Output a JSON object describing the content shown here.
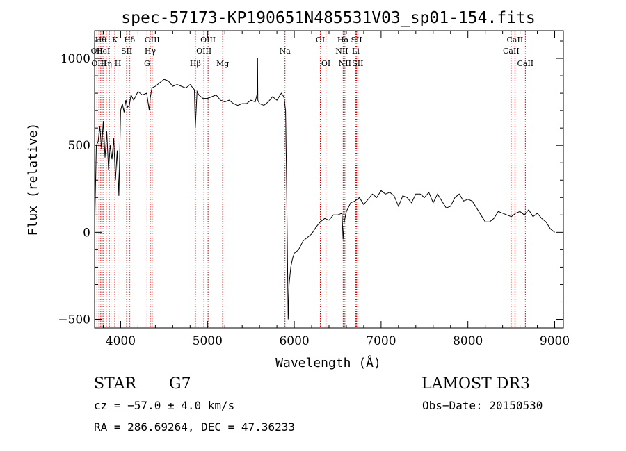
{
  "chart_data": {
    "type": "line",
    "title": "spec-57173-KP190651N485531V03_sp01-154.fits",
    "xlabel": "Wavelength (Å)",
    "ylabel": "Flux (relative)",
    "xlim": [
      3700,
      9100
    ],
    "ylim": [
      -550,
      1160
    ],
    "x_ticks": [
      4000,
      5000,
      6000,
      7000,
      8000,
      9000
    ],
    "y_ticks": [
      -500,
      0,
      500,
      1000
    ],
    "x_tick_labels": [
      "4000",
      "5000",
      "6000",
      "7000",
      "8000",
      "9000"
    ],
    "y_tick_labels": [
      "−500",
      "0",
      "500",
      "1000"
    ],
    "series": [
      {
        "x": [
          3700,
          3720,
          3740,
          3760,
          3780,
          3800,
          3820,
          3840,
          3860,
          3880,
          3900,
          3920,
          3940,
          3960,
          3980,
          4000,
          4020,
          4040,
          4060,
          4080,
          4100,
          4120,
          4150,
          4200,
          4250,
          4300,
          4330,
          4340,
          4360,
          4400,
          4450,
          4500,
          4550,
          4600,
          4650,
          4700,
          4750,
          4800,
          4850,
          4860,
          4880,
          4900,
          4950,
          5000,
          5050,
          5100,
          5150,
          5200,
          5250,
          5300,
          5350,
          5400,
          5450,
          5500,
          5550,
          5575,
          5577,
          5580,
          5600,
          5650,
          5700,
          5750,
          5800,
          5850,
          5880,
          5900,
          5910,
          5920,
          5930,
          5940,
          5960,
          5980,
          6000,
          6050,
          6100,
          6150,
          6200,
          6250,
          6300,
          6350,
          6400,
          6450,
          6500,
          6550,
          6562,
          6575,
          6600,
          6650,
          6700,
          6750,
          6800,
          6850,
          6900,
          6950,
          7000,
          7050,
          7100,
          7150,
          7200,
          7250,
          7300,
          7350,
          7400,
          7450,
          7500,
          7550,
          7600,
          7650,
          7700,
          7750,
          7800,
          7850,
          7900,
          7950,
          8000,
          8050,
          8100,
          8150,
          8200,
          8250,
          8300,
          8350,
          8400,
          8450,
          8500,
          8550,
          8600,
          8650,
          8700,
          8750,
          8800,
          8850,
          8900,
          8950,
          9000
        ],
        "y": [
          0,
          500,
          520,
          610,
          480,
          640,
          430,
          580,
          360,
          500,
          420,
          540,
          300,
          470,
          210,
          700,
          740,
          690,
          760,
          720,
          730,
          790,
          760,
          810,
          790,
          800,
          700,
          770,
          830,
          840,
          860,
          880,
          870,
          840,
          850,
          840,
          830,
          850,
          820,
          600,
          810,
          790,
          770,
          770,
          780,
          790,
          760,
          750,
          760,
          740,
          730,
          740,
          740,
          760,
          750,
          800,
          1000,
          760,
          740,
          730,
          750,
          780,
          760,
          800,
          780,
          700,
          350,
          -80,
          -500,
          -300,
          -200,
          -150,
          -120,
          -100,
          -50,
          -30,
          -10,
          30,
          60,
          80,
          70,
          100,
          100,
          110,
          -40,
          60,
          120,
          170,
          180,
          200,
          160,
          190,
          220,
          200,
          240,
          220,
          230,
          210,
          150,
          210,
          200,
          170,
          220,
          220,
          200,
          230,
          170,
          220,
          180,
          140,
          150,
          200,
          220,
          180,
          190,
          180,
          140,
          100,
          60,
          60,
          80,
          120,
          110,
          100,
          90,
          110,
          120,
          100,
          130,
          90,
          110,
          80,
          60,
          20,
          0
        ]
      }
    ],
    "line_markers": [
      {
        "x": 3727,
        "label": "OII",
        "row": 1
      },
      {
        "x": 3750,
        "label": "OIII",
        "row": 2
      },
      {
        "x": 3771,
        "label": "Hθ",
        "row": 0
      },
      {
        "x": 3797,
        "label": "HeI",
        "row": 1
      },
      {
        "x": 3835,
        "label": "Hη",
        "row": 2
      },
      {
        "x": 3869,
        "label": "",
        "row": -1
      },
      {
        "x": 3889,
        "label": "",
        "row": -1
      },
      {
        "x": 3933,
        "label": "K",
        "row": 0
      },
      {
        "x": 3969,
        "label": "H",
        "row": 2
      },
      {
        "x": 4069,
        "label": "SII",
        "row": 1
      },
      {
        "x": 4102,
        "label": "Hδ",
        "row": 0
      },
      {
        "x": 4304,
        "label": "G",
        "row": 2
      },
      {
        "x": 4341,
        "label": "Hγ",
        "row": 1
      },
      {
        "x": 4363,
        "label": "OIII",
        "row": 0
      },
      {
        "x": 4861,
        "label": "Hβ",
        "row": 2
      },
      {
        "x": 4959,
        "label": "OIII",
        "row": 1
      },
      {
        "x": 5007,
        "label": "OIII",
        "row": 0
      },
      {
        "x": 5175,
        "label": "Mg",
        "row": 2
      },
      {
        "x": 5893,
        "label": "Na",
        "row": 1
      },
      {
        "x": 6300,
        "label": "OI",
        "row": 0
      },
      {
        "x": 6364,
        "label": "OI",
        "row": 2
      },
      {
        "x": 6548,
        "label": "NII",
        "row": 1
      },
      {
        "x": 6563,
        "label": "Hα",
        "row": 0
      },
      {
        "x": 6583,
        "label": "NII",
        "row": 2
      },
      {
        "x": 6708,
        "label": "Li",
        "row": 1
      },
      {
        "x": 6717,
        "label": "SII",
        "row": 0
      },
      {
        "x": 6731,
        "label": "SII",
        "row": 2
      },
      {
        "x": 8498,
        "label": "CaII",
        "row": 1
      },
      {
        "x": 8542,
        "label": "CaII",
        "row": 0
      },
      {
        "x": 8662,
        "label": "CaII",
        "row": 2
      }
    ],
    "marker_color": "#cc0000",
    "line_color": "#000000"
  },
  "info": {
    "class": "STAR",
    "subclass": "G7",
    "survey": "LAMOST DR3",
    "cz": "cz = −57.0 ± 4.0 km/s",
    "obs_date": "Obs−Date: 20150530",
    "coords": "RA = 286.69264, DEC =  47.36233"
  }
}
